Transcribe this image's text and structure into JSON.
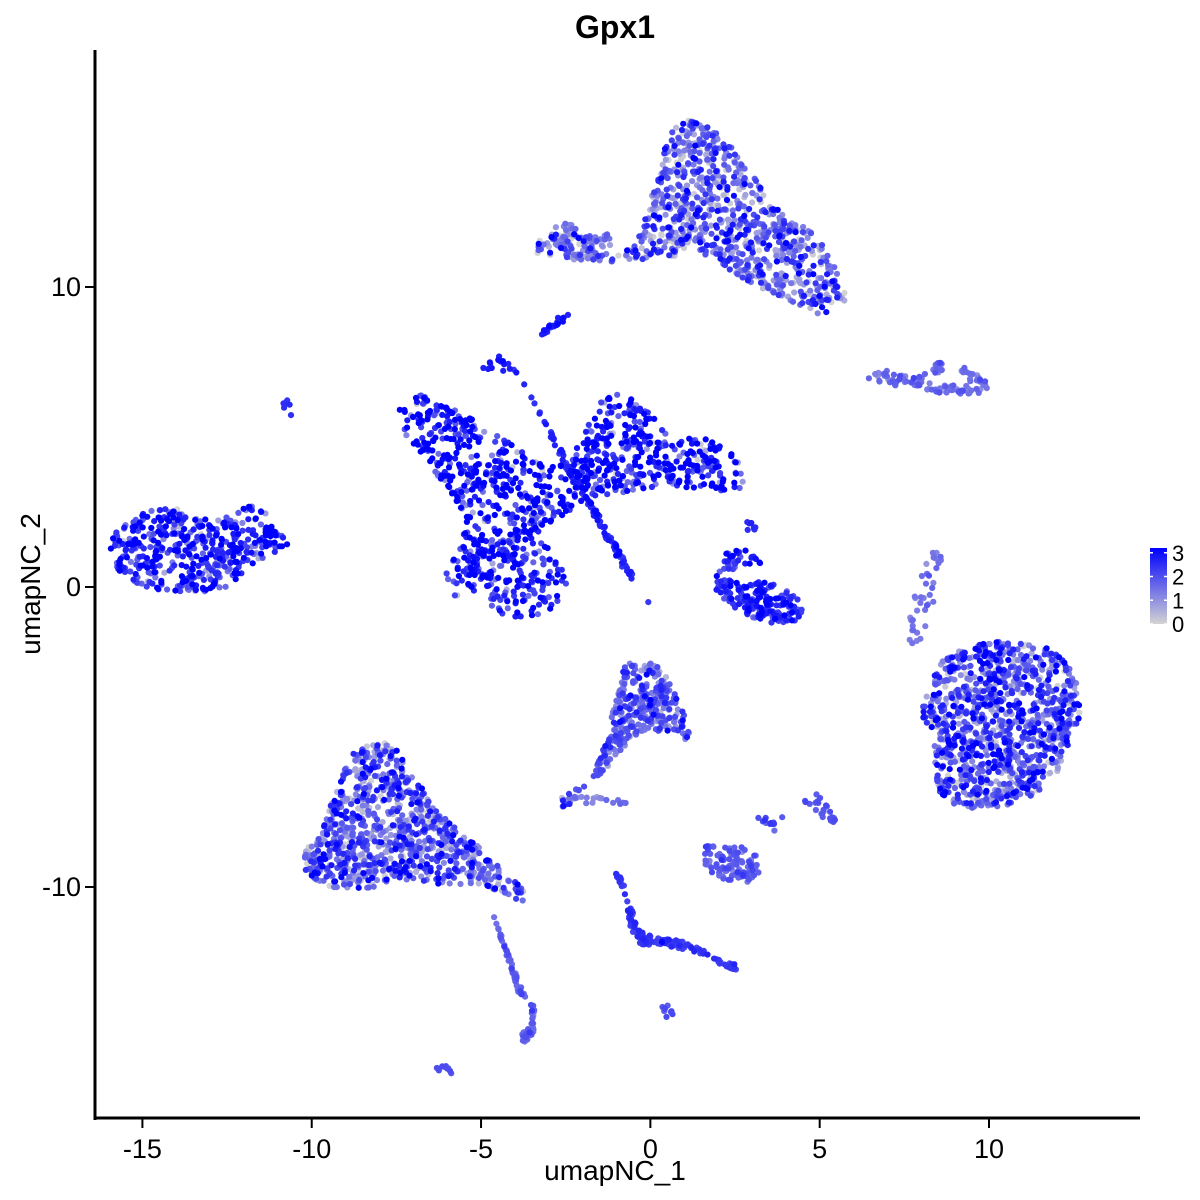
{
  "chart_data": {
    "type": "scatter",
    "title": "Gpx1",
    "xlabel": "umapNC_1",
    "ylabel": "umapNC_2",
    "xlim": [
      -16.4,
      14.4
    ],
    "ylim": [
      -17.7,
      17.9
    ],
    "x_ticks": [
      -15,
      -10,
      -5,
      0,
      5,
      10
    ],
    "x_tick_labels": [
      "-15",
      "-10",
      "-5",
      "0",
      "5",
      "10"
    ],
    "y_ticks": [
      -10,
      0,
      10
    ],
    "y_tick_labels": [
      "-10",
      "0",
      "10"
    ],
    "grid": false,
    "legend": {
      "placement": "right",
      "kind": "colorbar",
      "ticks": [
        0,
        1,
        2,
        3
      ],
      "tick_labels": [
        "0",
        "1",
        "2",
        "3"
      ],
      "low_color": "#d3d3d3",
      "high_color": "#0000ff",
      "range": [
        0,
        3.2
      ]
    },
    "clusters": [
      {
        "x": [
          -16.0,
          -15.7,
          -15.3,
          -14.9,
          -14.5,
          -14.0,
          -13.4,
          -12.9,
          -12.3,
          -11.8,
          -11.4,
          -11.0,
          -10.6,
          -11.1,
          -11.6,
          -12.1,
          -12.6,
          -13.2,
          -13.8,
          -14.4,
          -15.0,
          -15.6,
          -16.0
        ],
        "y": [
          1.5,
          2.0,
          2.3,
          2.5,
          2.6,
          2.6,
          2.4,
          2.2,
          2.4,
          2.8,
          2.5,
          2.0,
          1.4,
          1.1,
          0.9,
          0.4,
          -0.1,
          -0.2,
          -0.2,
          -0.1,
          0.0,
          0.4,
          1.0
        ],
        "n": 480,
        "expr": 2.4,
        "spread": 0.9
      },
      {
        "x": [
          -7.5,
          -6.8,
          -6.0,
          -5.2,
          -4.4,
          -3.6,
          -3.0,
          -2.4,
          -2.0,
          -1.5,
          -1.0,
          -0.5,
          0.2,
          0.5,
          0.8,
          1.2,
          1.8,
          2.5,
          2.8,
          2.6,
          2.0,
          1.5,
          0.9,
          0.3,
          -0.3,
          -1.0,
          -1.8,
          -2.6,
          -3.2,
          -3.6,
          -4.1,
          -4.6,
          -5.2,
          -5.8,
          -6.1,
          -5.5,
          -5.6,
          -6.2,
          -6.8,
          -7.3
        ],
        "y": [
          6.0,
          6.4,
          6.0,
          5.6,
          5.0,
          4.4,
          4.0,
          4.2,
          5.0,
          6.2,
          6.6,
          6.3,
          5.6,
          5.0,
          4.8,
          5.0,
          4.9,
          4.4,
          3.6,
          3.2,
          3.2,
          3.3,
          3.3,
          3.2,
          3.3,
          3.1,
          3.0,
          2.4,
          2.0,
          1.4,
          1.0,
          0.4,
          -0.2,
          -0.4,
          0.4,
          1.6,
          2.6,
          3.6,
          4.4,
          5.2
        ],
        "n": 900,
        "expr": 2.9,
        "spread": 1.1
      },
      {
        "x": [
          -4.1,
          -3.4,
          -2.9,
          -2.6,
          -2.4,
          -2.4,
          -2.6,
          -2.9,
          -3.4,
          -3.9,
          -4.4,
          -4.8,
          -5.2,
          -5.5,
          -5.4,
          -5.0,
          -4.6
        ],
        "y": [
          1.8,
          1.6,
          1.2,
          0.8,
          0.3,
          -0.2,
          -0.5,
          -0.8,
          -1.0,
          -1.0,
          -0.9,
          -0.6,
          -0.2,
          0.4,
          1.0,
          1.4,
          1.7
        ],
        "n": 150,
        "expr": 2.7,
        "spread": 0.7
      },
      {
        "x": [
          -3.8,
          -3.2,
          -2.7,
          -2.2,
          -1.7,
          -1.3,
          -1.0,
          -0.8,
          -0.6,
          -0.4,
          -0.2,
          0.0
        ],
        "y": [
          6.9,
          5.6,
          4.4,
          3.3,
          2.4,
          1.6,
          1.0,
          0.6,
          0.3,
          0.0,
          -0.3,
          -0.6
        ],
        "n": 120,
        "expr": 2.6,
        "spread": 0.25
      },
      {
        "x": [
          1.8,
          2.4,
          2.9,
          3.4,
          3.9,
          4.3,
          4.5,
          4.4,
          4.0,
          3.5,
          3.0,
          2.6,
          2.1,
          1.9,
          2.1,
          2.5,
          2.9,
          3.3
        ],
        "y": [
          0.4,
          0.2,
          0.1,
          0.2,
          0.0,
          -0.3,
          -0.8,
          -1.1,
          -1.2,
          -1.2,
          -1.0,
          -0.8,
          -0.4,
          0.0,
          1.0,
          1.4,
          1.2,
          0.8
        ],
        "n": 200,
        "expr": 2.6,
        "spread": 0.5
      },
      {
        "x": [
          -3.6,
          -3.2,
          -2.8,
          -2.4,
          -1.9,
          -1.4,
          -0.9,
          -0.4,
          0.1,
          0.6,
          1.1,
          1.6,
          2.1,
          2.6,
          3.1,
          3.6,
          4.1,
          4.6,
          5.1,
          5.6,
          5.9,
          5.4,
          4.9,
          4.4,
          3.9,
          3.4,
          2.9,
          2.4,
          1.9,
          1.4,
          1.2,
          1.4,
          1.2,
          0.8,
          0.6,
          0.6,
          0.8,
          0.3,
          -0.2,
          -0.7,
          -1.2,
          -1.7,
          -2.2,
          -2.7,
          -3.2
        ],
        "y": [
          11.2,
          11.7,
          12.0,
          11.9,
          11.5,
          11.1,
          11.1,
          11.4,
          13.5,
          15.2,
          15.6,
          15.4,
          15.0,
          14.4,
          13.6,
          12.8,
          12.2,
          12.0,
          11.4,
          10.3,
          9.5,
          9.2,
          9.1,
          9.4,
          9.6,
          9.9,
          10.2,
          10.5,
          10.8,
          11.2,
          11.9,
          12.6,
          11.6,
          11.0,
          10.7,
          10.6,
          11.0,
          11.1,
          10.9,
          10.9,
          10.8,
          10.8,
          10.9,
          10.9,
          11.0
        ],
        "n": 950,
        "expr": 1.5,
        "spread": 1.0
      },
      {
        "x": [
          6.6,
          7.2,
          7.8,
          8.2,
          8.6,
          9.2,
          9.6,
          9.9,
          9.4,
          8.8,
          8.4,
          7.9,
          7.3,
          6.8
        ],
        "y": [
          7.1,
          7.0,
          6.8,
          7.1,
          7.4,
          7.2,
          7.0,
          6.7,
          6.5,
          6.6,
          6.6,
          6.7,
          6.8,
          6.9
        ],
        "n": 120,
        "expr": 1.5,
        "spread": 0.3
      },
      {
        "x": [
          8.6,
          9.4,
          10.2,
          11.0,
          11.7,
          12.3,
          12.6,
          12.7,
          12.4,
          12.0,
          11.5,
          10.9,
          10.2,
          9.5,
          8.9,
          8.5,
          8.3,
          8.3,
          8.6,
          8.1,
          8.0,
          8.3
        ],
        "y": [
          -2.4,
          -2.0,
          -1.8,
          -1.8,
          -2.0,
          -2.5,
          -3.2,
          -4.2,
          -5.3,
          -6.2,
          -6.8,
          -7.2,
          -7.4,
          -7.4,
          -7.2,
          -6.8,
          -6.2,
          -5.4,
          -4.8,
          -4.6,
          -4.0,
          -3.2
        ],
        "n": 1100,
        "expr": 1.8,
        "spread": 1.0
      },
      {
        "x": [
          -10.2,
          -9.7,
          -9.2,
          -8.7,
          -8.2,
          -7.7,
          -7.3,
          -7.0,
          -6.6,
          -6.0,
          -5.5,
          -5.0,
          -4.5,
          -4.0,
          -3.7,
          -3.8,
          -4.2,
          -4.8,
          -5.3,
          -5.8,
          -6.4,
          -7.0,
          -7.6,
          -8.2,
          -8.8,
          -9.4,
          -9.9,
          -10.2
        ],
        "y": [
          -8.6,
          -8.2,
          -6.4,
          -5.4,
          -5.2,
          -5.2,
          -5.6,
          -6.2,
          -7.0,
          -7.8,
          -8.3,
          -8.7,
          -9.2,
          -9.8,
          -10.2,
          -10.6,
          -10.3,
          -10.0,
          -9.9,
          -9.9,
          -9.9,
          -9.8,
          -9.8,
          -10.0,
          -10.1,
          -10.0,
          -9.8,
          -9.4
        ],
        "n": 950,
        "expr": 1.6,
        "spread": 1.0
      },
      {
        "x": [
          -4.8,
          -4.6,
          -4.4,
          -4.2,
          -4.0,
          -3.8,
          -3.6,
          -3.5,
          -3.4,
          -3.6,
          -3.8,
          -3.8,
          -3.5,
          -3.4,
          -3.7,
          -3.9
        ],
        "y": [
          -10.4,
          -11.0,
          -11.6,
          -12.2,
          -12.8,
          -13.4,
          -13.9,
          -14.4,
          -14.8,
          -15.2,
          -15.3,
          -14.9,
          -14.5,
          -14.0,
          -13.7,
          -13.5
        ],
        "n": 100,
        "expr": 1.6,
        "spread": 0.25
      },
      {
        "x": [
          -0.8,
          -0.3,
          0.2,
          0.6,
          0.9,
          1.2,
          1.3,
          1.1,
          0.7,
          0.3,
          -0.2,
          -0.6,
          -0.8,
          -1.1,
          -1.4,
          -1.7,
          -2.1,
          -2.5,
          -2.9,
          -2.6,
          -2.3,
          -2.0,
          -1.6,
          -1.3
        ],
        "y": [
          -2.6,
          -2.4,
          -2.6,
          -3.2,
          -4.0,
          -4.8,
          -5.4,
          -5.2,
          -4.8,
          -4.8,
          -4.9,
          -5.0,
          -5.4,
          -5.8,
          -6.2,
          -6.6,
          -6.7,
          -6.8,
          -7.2,
          -7.4,
          -7.2,
          -6.7,
          -6.0,
          -5.0
        ],
        "n": 350,
        "expr": 1.7,
        "spread": 0.7
      },
      {
        "x": [
          -1.1,
          -0.9,
          -0.7,
          -0.5,
          -0.4,
          -0.1,
          0.4,
          0.9,
          1.4,
          1.9,
          2.2,
          2.6,
          2.6,
          2.1,
          1.7,
          1.1,
          0.6,
          0.1,
          -0.3,
          -0.6,
          -0.7,
          -0.8
        ],
        "y": [
          -9.4,
          -9.9,
          -10.4,
          -10.9,
          -11.4,
          -11.6,
          -11.7,
          -11.8,
          -12.0,
          -12.3,
          -12.5,
          -12.6,
          -12.8,
          -12.6,
          -12.3,
          -12.1,
          -12.0,
          -11.9,
          -12.0,
          -11.3,
          -10.5,
          -9.8
        ],
        "n": 160,
        "expr": 2.3,
        "spread": 0.2
      },
      {
        "x": [
          1.6,
          2.0,
          2.4,
          2.8,
          3.2,
          3.2,
          2.8,
          2.4,
          2.0,
          1.6
        ],
        "y": [
          -8.4,
          -8.7,
          -8.6,
          -8.7,
          -9.0,
          -9.6,
          -9.9,
          -9.8,
          -9.7,
          -9.4
        ],
        "n": 100,
        "expr": 1.8,
        "spread": 0.3
      },
      {
        "x": [
          -2.7,
          -2.6,
          -2.5,
          -2.3,
          -2.2,
          -1.9,
          -1.6,
          -1.3,
          -1.4,
          -1.8,
          -2.2,
          -2.5
        ],
        "y": [
          11.4,
          11.8,
          12.1,
          12.0,
          11.7,
          11.6,
          11.5,
          11.7,
          11.3,
          11.1,
          11.0,
          11.1
        ],
        "n": 60,
        "expr": 1.3,
        "spread": 0.5
      },
      {
        "x": [
          7.9,
          8.1,
          8.3,
          8.5,
          8.4,
          8.1,
          7.9,
          7.8,
          7.8,
          7.8
        ],
        "y": [
          -1.8,
          -1.0,
          0.0,
          0.8,
          1.2,
          0.6,
          -0.2,
          -0.8,
          -1.4,
          -2.0
        ],
        "n": 40,
        "expr": 1.4,
        "spread": 0.2
      },
      {
        "x": [
          -3.2,
          -3.0,
          -2.8,
          -2.6,
          -2.4
        ],
        "y": [
          8.4,
          8.6,
          8.8,
          8.9,
          9.0
        ],
        "n": 20,
        "expr": 2.8,
        "spread": 0.15
      },
      {
        "x": [
          -4.8,
          -4.5,
          -4.3,
          -4.1
        ],
        "y": [
          7.2,
          7.6,
          7.5,
          7.1
        ],
        "n": 16,
        "expr": 2.8,
        "spread": 0.15
      },
      {
        "x": [
          4.5,
          4.8,
          5.1,
          5.4,
          5.2,
          4.8
        ],
        "y": [
          -7.2,
          -7.3,
          -7.6,
          -7.8,
          -7.3,
          -7.0
        ],
        "n": 24,
        "expr": 2.0,
        "spread": 0.2
      },
      {
        "x": [
          3.2,
          3.4,
          3.6,
          3.8
        ],
        "y": [
          -7.6,
          -7.8,
          -7.9,
          -7.7
        ],
        "n": 12,
        "expr": 2.0,
        "spread": 0.2
      },
      {
        "x": [
          -6.2,
          -6.0,
          -5.8
        ],
        "y": [
          -16.0,
          -16.1,
          -16.2
        ],
        "n": 10,
        "expr": 2.0,
        "spread": 0.1
      },
      {
        "x": [
          0.3,
          0.5,
          0.7
        ],
        "y": [
          -14.0,
          -14.1,
          -14.2
        ],
        "n": 8,
        "expr": 2.0,
        "spread": 0.1
      },
      {
        "x": [
          -10.9,
          -10.7,
          -10.6
        ],
        "y": [
          6.2,
          6.0,
          5.9
        ],
        "n": 6,
        "expr": 2.5,
        "spread": 0.1
      },
      {
        "x": [
          2.8,
          3.0,
          3.2
        ],
        "y": [
          2.2,
          2.0,
          1.8
        ],
        "n": 8,
        "expr": 2.5,
        "spread": 0.15
      },
      {
        "x": [
          -3.0,
          -2.5,
          -1.8,
          -1.3
        ],
        "y": [
          -6.9,
          -7.0,
          -7.1,
          -7.0
        ],
        "n": 14,
        "expr": 1.2,
        "spread": 0.2
      },
      {
        "x": [
          -1.2,
          -1.0,
          -0.8
        ],
        "y": [
          -7.0,
          -7.1,
          -7.2
        ],
        "n": 6,
        "expr": 1.5,
        "spread": 0.1
      }
    ]
  }
}
